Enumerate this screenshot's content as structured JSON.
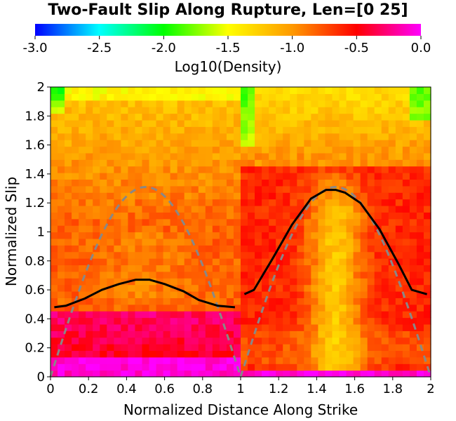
{
  "chart_data": {
    "type": "heatmap",
    "title": "Two-Fault Slip Along Rupture, Len=[0 25]",
    "xlabel": "Normalized Distance Along Strike",
    "ylabel": "Normalized Slip",
    "xlim": [
      0,
      2
    ],
    "ylim": [
      0,
      2
    ],
    "xticks": [
      "0",
      "0.2",
      "0.4",
      "0.6",
      "0.8",
      "1",
      "1.2",
      "1.4",
      "1.6",
      "1.8",
      "2"
    ],
    "yticks": [
      "0",
      "0.2",
      "0.4",
      "0.6",
      "0.8",
      "1",
      "1.2",
      "1.4",
      "1.6",
      "1.8",
      "2"
    ],
    "colorbar": {
      "label": "Log10(Density)",
      "range": [
        -3.0,
        0.0
      ],
      "ticks": [
        "-3.0",
        "-2.5",
        "-2.0",
        "-1.5",
        "-1.0",
        "-0.5",
        "0.0"
      ],
      "colors": [
        "#0000ff",
        "#00ffff",
        "#00ff00",
        "#ffff00",
        "#ff9900",
        "#ff0000",
        "#ff00ff"
      ]
    },
    "mean_slip_fault1": {
      "x": [
        0.02,
        0.08,
        0.18,
        0.27,
        0.36,
        0.45,
        0.52,
        0.6,
        0.7,
        0.78,
        0.88,
        0.97
      ],
      "y": [
        0.48,
        0.49,
        0.54,
        0.6,
        0.64,
        0.67,
        0.67,
        0.64,
        0.59,
        0.53,
        0.49,
        0.48
      ]
    },
    "mean_slip_fault2": {
      "x": [
        1.02,
        1.07,
        1.17,
        1.27,
        1.37,
        1.45,
        1.5,
        1.55,
        1.63,
        1.73,
        1.83,
        1.9,
        1.98
      ],
      "y": [
        0.57,
        0.6,
        0.82,
        1.05,
        1.23,
        1.29,
        1.29,
        1.27,
        1.2,
        1.02,
        0.78,
        0.6,
        0.57
      ]
    },
    "reference_arc": {
      "peak": 1.31,
      "style": "dashed",
      "color": "#888888"
    }
  }
}
